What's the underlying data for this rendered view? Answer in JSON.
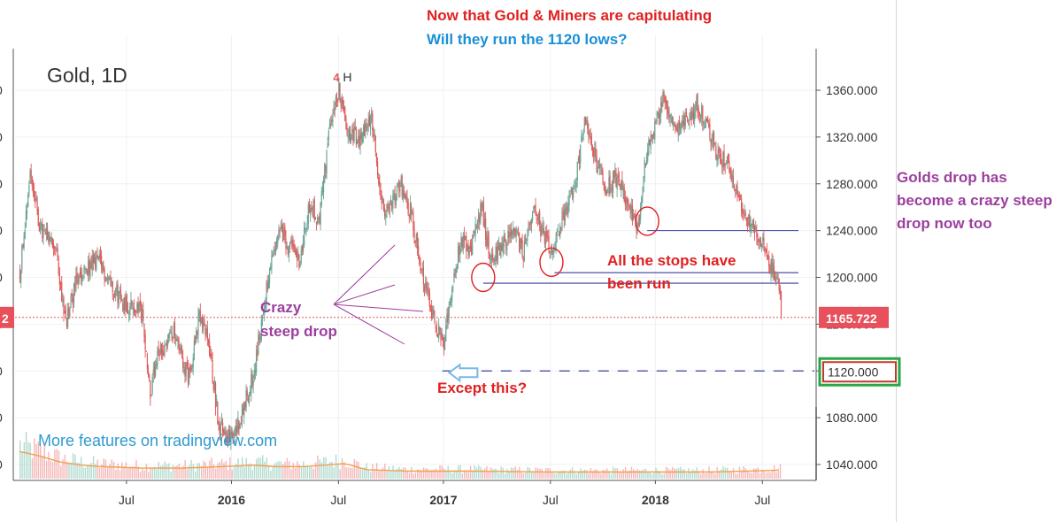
{
  "header": {
    "line1": "Now that Gold & Miners are capitulating",
    "line2": "Will they run the 1120 lows?"
  },
  "side_note": "Golds drop has become a crazy steep drop now too",
  "chart_data": {
    "type": "candlestick",
    "title": "Gold, 1D",
    "ylim": [
      1020,
      1395
    ],
    "y_ticks": [
      1040,
      1080,
      1120,
      1160,
      1200,
      1240,
      1280,
      1320,
      1360
    ],
    "y_tick_labels": [
      "1040.000",
      "1080.000",
      "1120.000",
      "1160.000",
      "1200.000",
      "1240.000",
      "1280.000",
      "1320.000",
      "1360.000"
    ],
    "x_ticks": [
      "Jul",
      "2016",
      "Jul",
      "2017",
      "Jul",
      "2018",
      "Jul"
    ],
    "x_tick_index": [
      105,
      208,
      313,
      416,
      521,
      624,
      729
    ],
    "last_price": 1165.722,
    "last_price_label": "1165.722",
    "left_price_label": "2",
    "highlight_price": 1120,
    "highlight_label": "1120.000",
    "marker": "H",
    "marker_badge": "4",
    "watermark": "More features on tradingview.com",
    "path": [
      [
        0,
        1205
      ],
      [
        10,
        1290
      ],
      [
        20,
        1240
      ],
      [
        35,
        1225
      ],
      [
        45,
        1160
      ],
      [
        55,
        1195
      ],
      [
        75,
        1215
      ],
      [
        90,
        1195
      ],
      [
        100,
        1180
      ],
      [
        110,
        1175
      ],
      [
        120,
        1170
      ],
      [
        128,
        1100
      ],
      [
        135,
        1130
      ],
      [
        150,
        1155
      ],
      [
        165,
        1115
      ],
      [
        176,
        1165
      ],
      [
        185,
        1145
      ],
      [
        195,
        1075
      ],
      [
        208,
        1060
      ],
      [
        218,
        1085
      ],
      [
        230,
        1120
      ],
      [
        243,
        1195
      ],
      [
        255,
        1240
      ],
      [
        265,
        1225
      ],
      [
        275,
        1215
      ],
      [
        285,
        1265
      ],
      [
        293,
        1245
      ],
      [
        305,
        1335
      ],
      [
        313,
        1360
      ],
      [
        320,
        1330
      ],
      [
        332,
        1315
      ],
      [
        345,
        1340
      ],
      [
        357,
        1250
      ],
      [
        366,
        1265
      ],
      [
        374,
        1280
      ],
      [
        385,
        1250
      ],
      [
        396,
        1200
      ],
      [
        405,
        1170
      ],
      [
        416,
        1140
      ],
      [
        424,
        1195
      ],
      [
        432,
        1230
      ],
      [
        442,
        1225
      ],
      [
        453,
        1260
      ],
      [
        462,
        1215
      ],
      [
        472,
        1225
      ],
      [
        484,
        1240
      ],
      [
        494,
        1220
      ],
      [
        504,
        1260
      ],
      [
        512,
        1240
      ],
      [
        522,
        1215
      ],
      [
        534,
        1255
      ],
      [
        545,
        1280
      ],
      [
        555,
        1335
      ],
      [
        565,
        1300
      ],
      [
        575,
        1275
      ],
      [
        585,
        1285
      ],
      [
        595,
        1265
      ],
      [
        606,
        1240
      ],
      [
        614,
        1300
      ],
      [
        624,
        1335
      ],
      [
        632,
        1355
      ],
      [
        642,
        1325
      ],
      [
        652,
        1330
      ],
      [
        665,
        1350
      ],
      [
        676,
        1325
      ],
      [
        686,
        1300
      ],
      [
        694,
        1300
      ],
      [
        702,
        1280
      ],
      [
        712,
        1250
      ],
      [
        720,
        1240
      ],
      [
        728,
        1230
      ],
      [
        736,
        1210
      ],
      [
        745,
        1195
      ],
      [
        747,
        1165
      ]
    ],
    "volume_path": [
      [
        0,
        0.9
      ],
      [
        20,
        0.75
      ],
      [
        40,
        0.55
      ],
      [
        60,
        0.45
      ],
      [
        80,
        0.4
      ],
      [
        120,
        0.35
      ],
      [
        160,
        0.35
      ],
      [
        200,
        0.4
      ],
      [
        230,
        0.45
      ],
      [
        250,
        0.4
      ],
      [
        280,
        0.4
      ],
      [
        300,
        0.45
      ],
      [
        320,
        0.5
      ],
      [
        340,
        0.3
      ],
      [
        380,
        0.25
      ],
      [
        440,
        0.25
      ],
      [
        520,
        0.22
      ],
      [
        600,
        0.22
      ],
      [
        680,
        0.22
      ],
      [
        747,
        0.28
      ]
    ],
    "annotations": {
      "crazy_drop": "Crazy steep drop",
      "stops_run": "All the stops have been run",
      "except_this": "Except this?"
    },
    "stop_levels": [
      {
        "price": 1240,
        "from_index": 616
      },
      {
        "price": 1204,
        "from_index": 525
      },
      {
        "price": 1195,
        "from_index": 455
      }
    ],
    "circled": [
      {
        "index": 455,
        "price": 1200
      },
      {
        "index": 522,
        "price": 1213
      },
      {
        "index": 616,
        "price": 1248
      }
    ]
  }
}
